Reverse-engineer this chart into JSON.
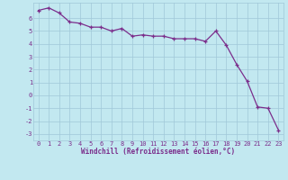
{
  "x": [
    0,
    1,
    2,
    3,
    4,
    5,
    6,
    7,
    8,
    9,
    10,
    11,
    12,
    13,
    14,
    15,
    16,
    17,
    18,
    19,
    20,
    21,
    22,
    23
  ],
  "y": [
    6.6,
    6.8,
    6.4,
    5.7,
    5.6,
    5.3,
    5.3,
    5.0,
    5.2,
    4.6,
    4.7,
    4.6,
    4.6,
    4.4,
    4.4,
    4.4,
    4.2,
    5.0,
    3.9,
    2.4,
    1.1,
    -0.9,
    -1.0,
    -2.7
  ],
  "line_color": "#7b2d8b",
  "marker": "+",
  "marker_color": "#7b2d8b",
  "bg_color": "#c2e8f0",
  "grid_color": "#a0c8d8",
  "xlabel": "Windchill (Refroidissement éolien,°C)",
  "xlim": [
    -0.5,
    23.5
  ],
  "ylim": [
    -3.5,
    7.2
  ],
  "yticks": [
    -3,
    -2,
    -1,
    0,
    1,
    2,
    3,
    4,
    5,
    6
  ],
  "xticks": [
    0,
    1,
    2,
    3,
    4,
    5,
    6,
    7,
    8,
    9,
    10,
    11,
    12,
    13,
    14,
    15,
    16,
    17,
    18,
    19,
    20,
    21,
    22,
    23
  ],
  "font_color": "#7b2d8b",
  "tick_fontsize": 5.0,
  "xlabel_fontsize": 5.5,
  "linewidth": 0.9,
  "markersize": 3.5
}
